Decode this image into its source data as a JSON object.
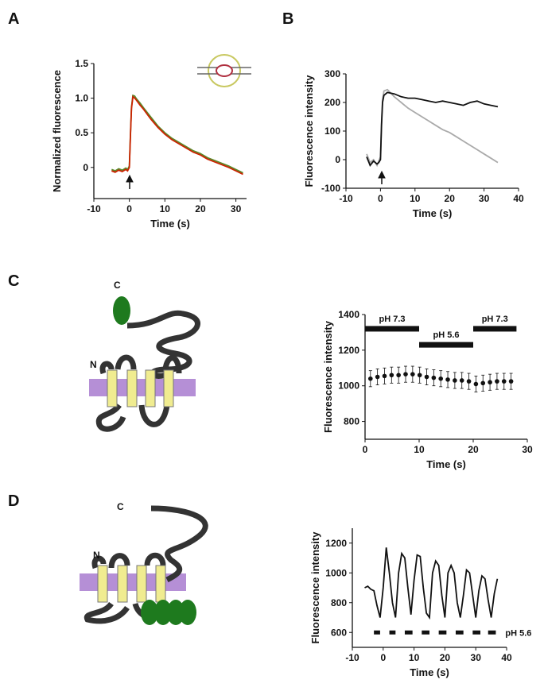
{
  "panel_labels": [
    "A",
    "B",
    "C",
    "D"
  ],
  "diagram_labels": {
    "c_upper": "C",
    "n_upper": "N",
    "c_lower": "C",
    "n_lower": "N"
  },
  "chart_data": [
    {
      "type": "line",
      "x_label": "Time (s)",
      "y_label": "Normalized fluorescence",
      "xlim": [
        -10,
        33
      ],
      "xticks": [
        -10,
        0,
        10,
        20,
        30
      ],
      "ylim": [
        -0.45,
        1.5
      ],
      "yticks": [
        0,
        0.5,
        {
          "value": 1,
          "label": "1.0"
        },
        1.5
      ],
      "x": [
        -5,
        -4,
        -3,
        -2,
        -1,
        -0.5,
        0,
        0.3,
        0.6,
        1,
        1.5,
        2,
        3,
        4,
        6,
        8,
        10,
        12,
        14,
        16,
        18,
        20,
        22,
        24,
        26,
        28,
        30,
        32
      ],
      "series": [
        {
          "color": "#5a8a2a",
          "values": [
            -0.03,
            -0.05,
            -0.02,
            -0.04,
            -0.01,
            -0.03,
            0.02,
            0.47,
            0.87,
            1.04,
            1.03,
            0.99,
            0.93,
            0.86,
            0.73,
            0.6,
            0.5,
            0.42,
            0.36,
            0.3,
            0.24,
            0.2,
            0.14,
            0.1,
            0.06,
            0.02,
            -0.03,
            -0.08
          ]
        },
        {
          "color": "#cc2200",
          "values": [
            -0.05,
            -0.07,
            -0.04,
            -0.06,
            -0.03,
            -0.05,
            0,
            0.45,
            0.85,
            1.02,
            1.0,
            0.97,
            0.9,
            0.84,
            0.7,
            0.58,
            0.48,
            0.4,
            0.34,
            0.28,
            0.22,
            0.18,
            0.12,
            0.08,
            0.04,
            0,
            -0.05,
            -0.1
          ]
        }
      ]
    },
    {
      "type": "line",
      "x_label": "Time (s)",
      "y_label": "Fluorescence intensity",
      "xlim": [
        -10,
        40
      ],
      "xticks": [
        -10,
        0,
        10,
        20,
        30,
        40
      ],
      "ylim": [
        -100,
        300
      ],
      "yticks": [
        -100,
        0,
        100,
        200,
        300
      ],
      "x": [
        -4,
        -3,
        -2,
        -1,
        -0.5,
        0,
        0.3,
        0.6,
        1,
        2,
        4,
        6,
        8,
        10,
        12,
        14,
        16,
        18,
        20,
        22,
        24,
        26,
        28,
        30,
        32,
        34
      ],
      "series": [
        {
          "color": "#aaaaaa",
          "values": [
            20,
            -10,
            0,
            -20,
            -5,
            10,
            130,
            210,
            240,
            245,
            220,
            200,
            180,
            165,
            150,
            135,
            120,
            105,
            95,
            80,
            65,
            50,
            35,
            20,
            5,
            -10
          ]
        },
        {
          "color": "#111111",
          "values": [
            10,
            -20,
            -5,
            -15,
            -10,
            0,
            120,
            200,
            225,
            235,
            230,
            220,
            215,
            215,
            210,
            205,
            200,
            205,
            200,
            195,
            190,
            200,
            205,
            195,
            190,
            185
          ]
        }
      ]
    },
    {
      "type": "errorbar",
      "x_label": "Time (s)",
      "y_label": "Fluorescence intensity",
      "xlim": [
        0,
        30
      ],
      "xticks": [
        0,
        10,
        20,
        30
      ],
      "ylim": [
        700,
        1400
      ],
      "yticks": [
        800,
        1000,
        1200,
        1400
      ],
      "x": [
        1,
        2.3,
        3.6,
        4.9,
        6.2,
        7.5,
        8.8,
        10.1,
        11.4,
        12.7,
        14,
        15.3,
        16.6,
        17.9,
        19.2,
        20.5,
        21.8,
        23.1,
        24.4,
        25.7,
        27
      ],
      "color": "#111111",
      "values": [
        1040,
        1050,
        1055,
        1060,
        1060,
        1065,
        1065,
        1060,
        1050,
        1045,
        1040,
        1035,
        1030,
        1030,
        1025,
        1010,
        1015,
        1020,
        1025,
        1025,
        1025
      ],
      "errors": [
        45,
        45,
        45,
        45,
        45,
        45,
        45,
        45,
        45,
        45,
        45,
        45,
        45,
        45,
        45,
        45,
        45,
        45,
        45,
        45,
        45
      ],
      "periods": [
        {
          "label": "pH 7.3",
          "start": 0,
          "end": 10,
          "level": 1320
        },
        {
          "label": "pH 5.6",
          "start": 10,
          "end": 20,
          "level": 1230
        },
        {
          "label": "pH 7.3",
          "start": 20,
          "end": 28,
          "level": 1320
        }
      ]
    },
    {
      "type": "line",
      "x_label": "Time (s)",
      "y_label": "Fluorescence intensity",
      "xlim": [
        -10,
        40
      ],
      "xticks": [
        -10,
        0,
        10,
        20,
        30,
        40
      ],
      "ylim": [
        500,
        1300
      ],
      "yticks": [
        600,
        800,
        1000,
        1200
      ],
      "x": [
        -6,
        -5,
        -4,
        -3,
        -2,
        -1,
        0,
        1,
        2,
        3,
        4,
        5,
        6,
        7,
        8,
        9,
        10,
        11,
        12,
        13,
        14,
        15,
        16,
        17,
        18,
        19,
        20,
        21,
        22,
        23,
        24,
        25,
        26,
        27,
        28,
        29,
        30,
        31,
        32,
        33,
        34,
        35,
        36,
        37
      ],
      "series": [
        {
          "color": "#111111",
          "values": [
            900,
            910,
            890,
            880,
            780,
            700,
            900,
            1170,
            1000,
            800,
            700,
            1000,
            1130,
            1100,
            900,
            720,
            950,
            1120,
            1110,
            900,
            730,
            700,
            1000,
            1080,
            1050,
            850,
            700,
            1000,
            1050,
            1000,
            800,
            700,
            850,
            1020,
            1000,
            850,
            700,
            880,
            980,
            960,
            820,
            700,
            860,
            960
          ]
        }
      ],
      "pulses": {
        "label": "pH 5.6",
        "level": 600,
        "starts": [
          -3,
          2,
          7,
          12.5,
          18,
          23.5,
          29,
          34
        ],
        "ends": [
          -1,
          4,
          9.5,
          15,
          20.5,
          26,
          31.5,
          36.5
        ]
      }
    }
  ]
}
